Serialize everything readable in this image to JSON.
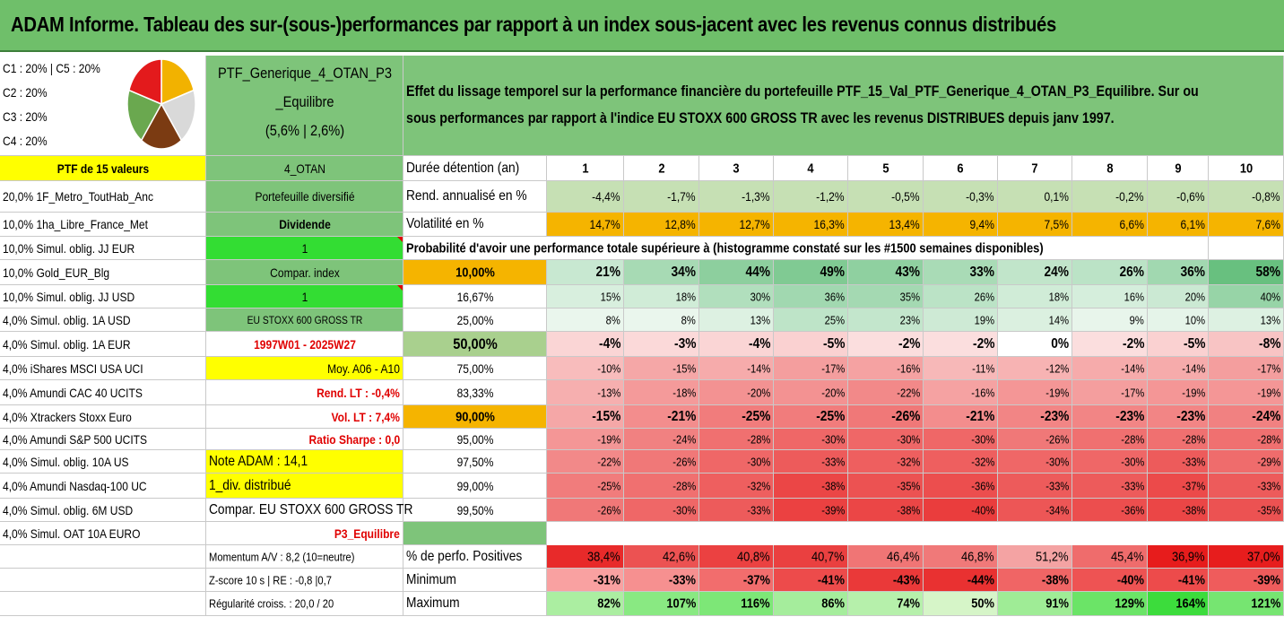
{
  "title": "ADAM Informe. Tableau des sur-(sous-)performances par rapport à un index sous-jacent avec les revenus connus distribués",
  "allocation_legend": [
    "C1 : 20% | C5 : 20%",
    "C2 : 20%",
    "C3 : 20%",
    "C4 : 20%"
  ],
  "pie_colors": [
    "#f2b200",
    "#d9d9d9",
    "#7b3b12",
    "#6aa84f",
    "#e31a1c"
  ],
  "portfolio_name_lines": [
    "PTF_Generique_4_OTAN_P3",
    "_Equilibre",
    "(5,6% | 2,6%)"
  ],
  "description_lines": [
    "Effet du lissage temporel sur la performance financière du portefeuille PTF_15_Val_PTF_Generique_4_OTAN_P3_Equilibre. Sur ou",
    "sous performances par rapport à l'indice EU STOXX 600 GROSS TR avec les revenus DISTRIBUES depuis janv 1997."
  ],
  "ptf_header": "PTF de 15 valeurs",
  "holdings": [
    "20,0% 1F_Metro_ToutHab_Anc",
    "10,0% 1ha_Libre_France_Met",
    "10,0% Simul. oblig. JJ EUR",
    "10,0% Gold_EUR_Blg",
    "10,0% Simul. oblig. JJ USD",
    "4,0% Simul. oblig. 1A USD",
    "4,0% Simul. oblig. 1A EUR",
    "4,0% iShares MSCI USA UCI",
    "4,0% Amundi CAC 40 UCITS",
    "4,0% Xtrackers Stoxx Euro",
    "4,0% Amundi S&P 500 UCITS",
    "4,0% Simul. oblig. 10A US",
    "4,0% Amundi Nasdaq-100 UC",
    "4,0% Simul. oblig. 6M USD",
    "4,0% Simul. OAT 10A EURO"
  ],
  "info_col": [
    "4_OTAN",
    "Portefeuille diversifié",
    "Dividende",
    "1",
    "Compar. index",
    "1",
    "EU STOXX 600 GROSS TR",
    "1997W01 - 2025W27",
    "Moy. A06 - A10",
    "Rend. LT : -0,4%",
    "Vol. LT : 7,4%",
    "Ratio Sharpe : 0,0",
    "Note ADAM : 14,1",
    "1_div. distribué",
    "Compar. EU STOXX 600 GROSS TR",
    "P3_Equilibre"
  ],
  "stats_bottom": [
    "Momentum A/V : 8,2 (10=neutre)",
    "Z-score 10 s | RE : -0,8 |0,7",
    "Régularité croiss. : 20,0 / 20"
  ],
  "row_labels": {
    "duration": "Durée détention (an)",
    "annual_return": "Rend. annualisé en %",
    "volatility": "Volatilité en %",
    "probability": "Probabilité d'avoir une performance totale supérieure à (histogramme constaté sur les #1500 semaines disponibles)",
    "positive": "% de perfo. Positives",
    "minimum": "Minimum",
    "maximum": "Maximum"
  },
  "years": [
    "1",
    "2",
    "3",
    "4",
    "5",
    "6",
    "7",
    "8",
    "9",
    "10"
  ],
  "annual_return": [
    "-4,4%",
    "-1,7%",
    "-1,3%",
    "-1,2%",
    "-0,5%",
    "-0,3%",
    "0,1%",
    "-0,2%",
    "-0,6%",
    "-0,8%"
  ],
  "volatility": [
    "14,7%",
    "12,8%",
    "12,7%",
    "16,3%",
    "13,4%",
    "9,4%",
    "7,5%",
    "6,6%",
    "6,1%",
    "7,6%"
  ],
  "quantile_rows": [
    {
      "q": "10,00%",
      "values": [
        "21%",
        "34%",
        "44%",
        "49%",
        "43%",
        "33%",
        "24%",
        "26%",
        "36%",
        "58%"
      ]
    },
    {
      "q": "16,67%",
      "values": [
        "15%",
        "18%",
        "30%",
        "36%",
        "35%",
        "26%",
        "18%",
        "16%",
        "20%",
        "40%"
      ]
    },
    {
      "q": "25,00%",
      "values": [
        "8%",
        "8%",
        "13%",
        "25%",
        "23%",
        "19%",
        "14%",
        "9%",
        "10%",
        "13%"
      ]
    },
    {
      "q": "50,00%",
      "values": [
        "-4%",
        "-3%",
        "-4%",
        "-5%",
        "-2%",
        "-2%",
        "0%",
        "-2%",
        "-5%",
        "-8%"
      ]
    },
    {
      "q": "75,00%",
      "values": [
        "-10%",
        "-15%",
        "-14%",
        "-17%",
        "-16%",
        "-11%",
        "-12%",
        "-14%",
        "-14%",
        "-17%"
      ]
    },
    {
      "q": "83,33%",
      "values": [
        "-13%",
        "-18%",
        "-20%",
        "-20%",
        "-22%",
        "-16%",
        "-19%",
        "-17%",
        "-19%",
        "-19%"
      ]
    },
    {
      "q": "90,00%",
      "values": [
        "-15%",
        "-21%",
        "-25%",
        "-25%",
        "-26%",
        "-21%",
        "-23%",
        "-23%",
        "-23%",
        "-24%"
      ]
    },
    {
      "q": "95,00%",
      "values": [
        "-19%",
        "-24%",
        "-28%",
        "-30%",
        "-30%",
        "-30%",
        "-26%",
        "-28%",
        "-28%",
        "-28%"
      ]
    },
    {
      "q": "97,50%",
      "values": [
        "-22%",
        "-26%",
        "-30%",
        "-33%",
        "-32%",
        "-32%",
        "-30%",
        "-30%",
        "-33%",
        "-29%"
      ]
    },
    {
      "q": "99,00%",
      "values": [
        "-25%",
        "-28%",
        "-32%",
        "-38%",
        "-35%",
        "-36%",
        "-33%",
        "-33%",
        "-37%",
        "-33%"
      ]
    },
    {
      "q": "99,50%",
      "values": [
        "-26%",
        "-30%",
        "-33%",
        "-39%",
        "-38%",
        "-40%",
        "-34%",
        "-36%",
        "-38%",
        "-35%"
      ]
    }
  ],
  "positive_pct": [
    "38,4%",
    "42,6%",
    "40,8%",
    "40,7%",
    "46,4%",
    "46,8%",
    "51,2%",
    "45,4%",
    "36,9%",
    "37,0%"
  ],
  "minimum": [
    "-31%",
    "-33%",
    "-37%",
    "-41%",
    "-43%",
    "-44%",
    "-38%",
    "-40%",
    "-41%",
    "-39%"
  ],
  "maximum": [
    "82%",
    "107%",
    "116%",
    "86%",
    "74%",
    "50%",
    "91%",
    "129%",
    "164%",
    "121%"
  ],
  "colors": {
    "title_green": "#6fbf6a",
    "header_green": "#7ec47a",
    "bright_green": "#33dd33",
    "yellow": "#ffff00",
    "orange": "#f5b400",
    "red_text": "#e00000",
    "sage": "#a9d08e"
  }
}
